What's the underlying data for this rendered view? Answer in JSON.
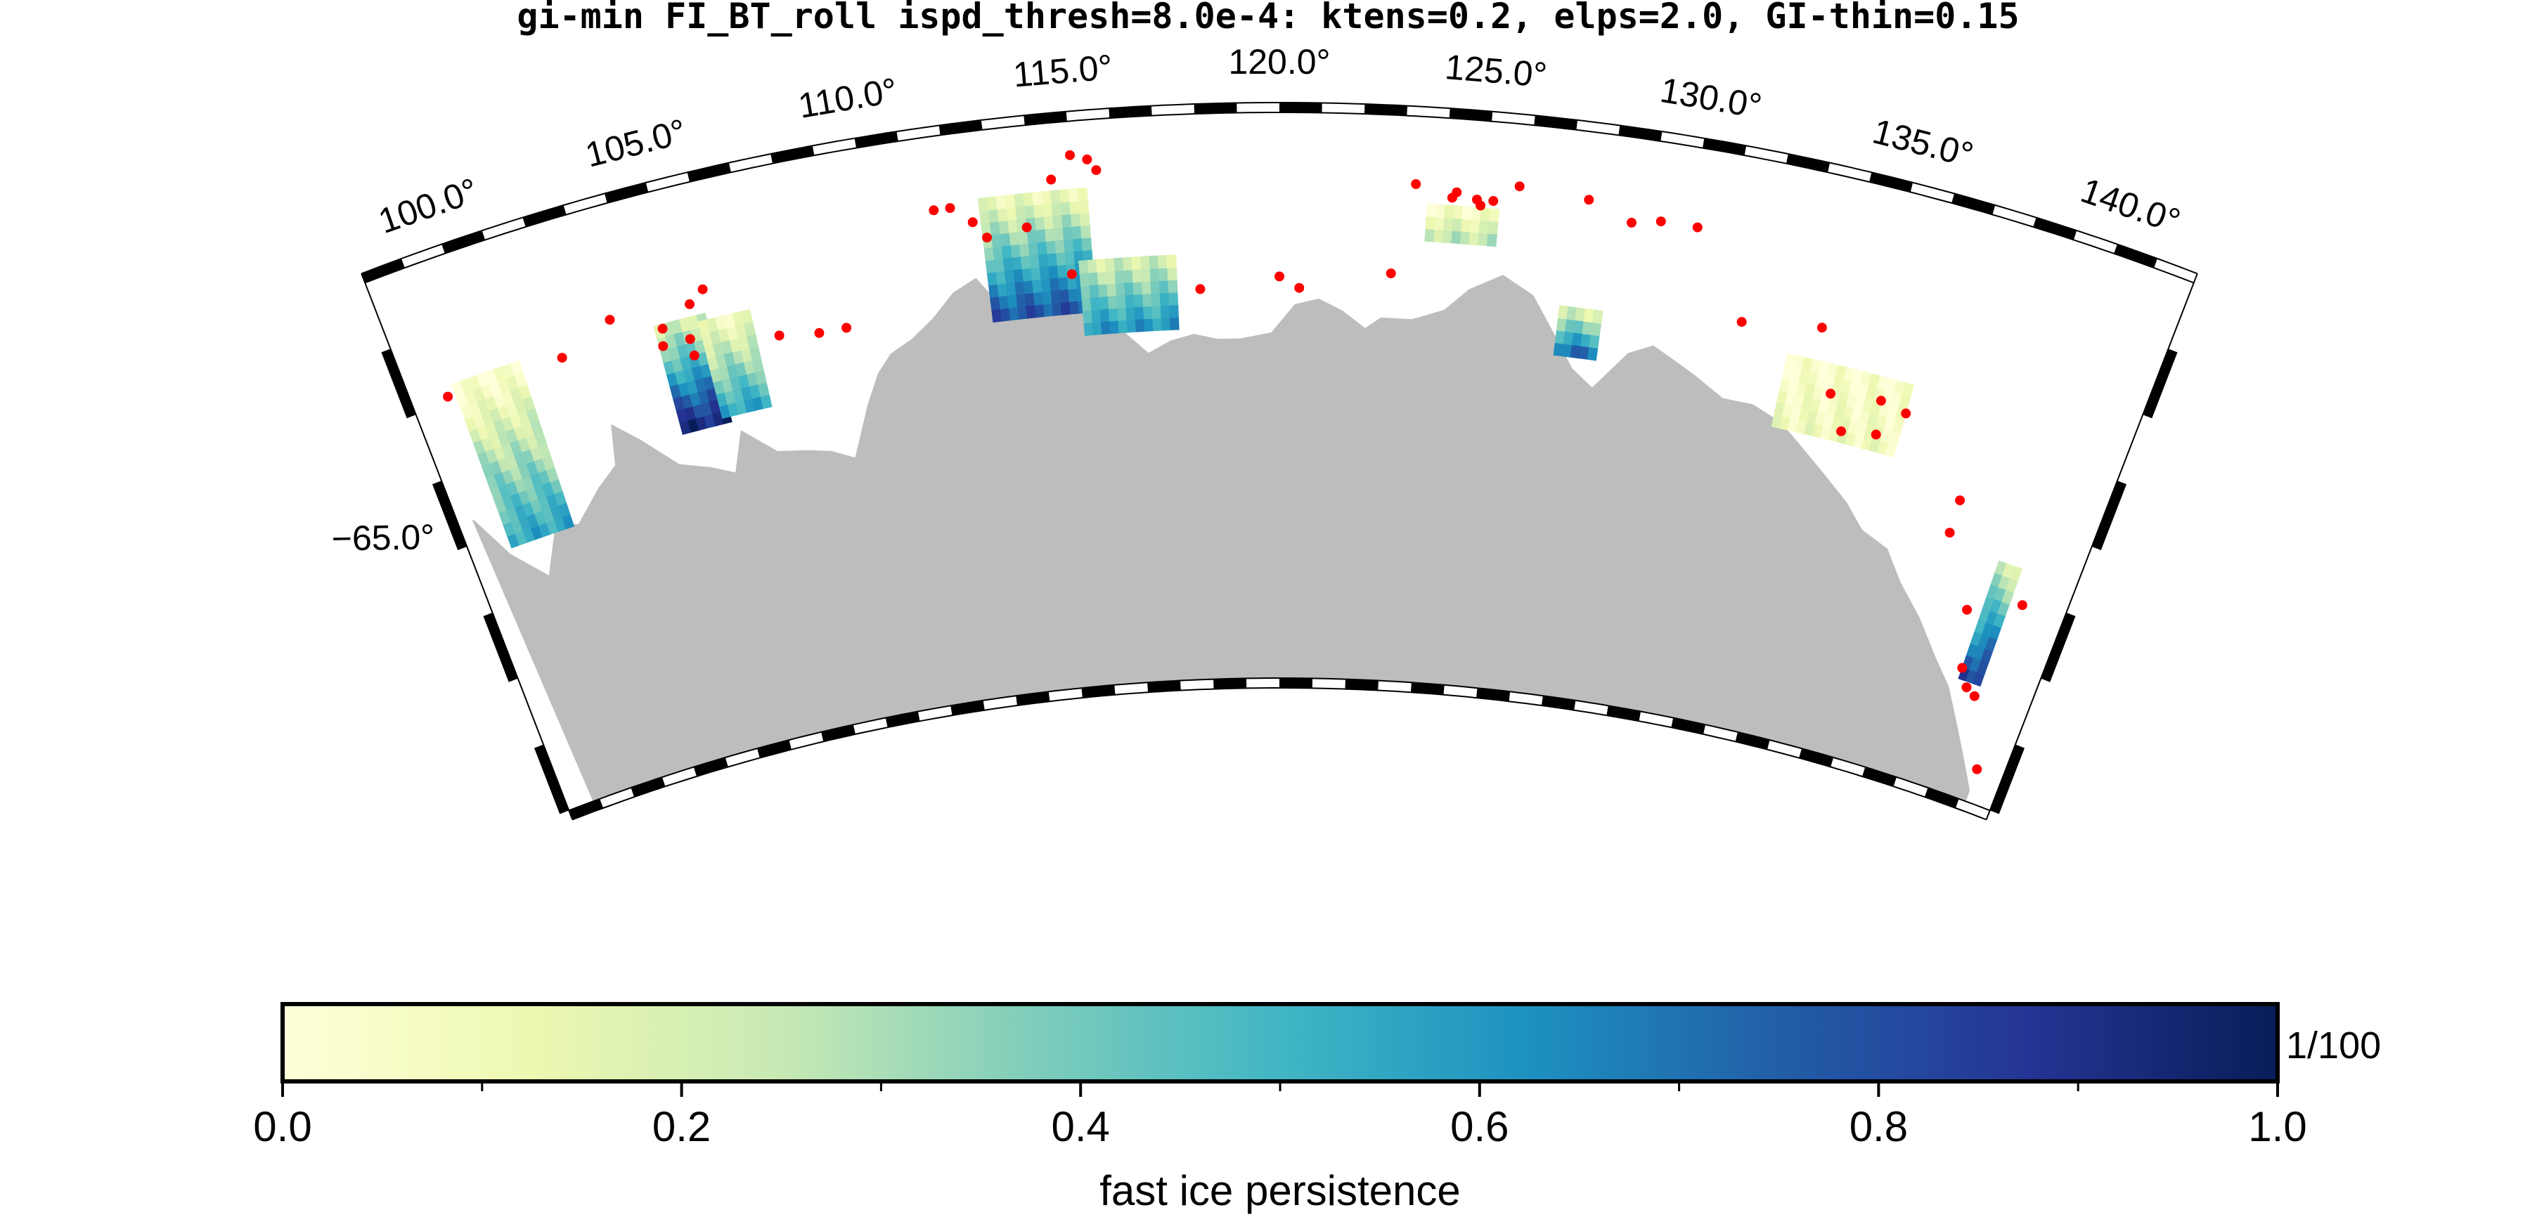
{
  "title": "gi-min FI_BT_roll ispd_thresh=8.0e-4: ktens=0.2, elps=2.0, GI-thin=0.15",
  "map": {
    "lon_range": [
      98.0,
      142.0
    ],
    "lat_range": [
      -70.0,
      -62.0
    ],
    "lon_ticks": [
      100,
      105,
      110,
      115,
      120,
      125,
      130,
      135,
      140
    ],
    "lon_tick_labels": [
      "100.0°",
      "105.0°",
      "110.0°",
      "115.0°",
      "120.0°",
      "125.0°",
      "130.0°",
      "135.0°",
      "140.0°"
    ],
    "lat_tick_labels": [
      "-65.0°"
    ],
    "land_color": "#bdbdbd",
    "point_color": "#ff0000",
    "frame": "fancy"
  },
  "legend": {
    "cmap": "YlGnBu",
    "range": [
      0.0,
      1.0
    ],
    "tick_labels": [
      "0.0",
      "0.2",
      "0.4",
      "0.6",
      "0.8",
      "1.0"
    ],
    "unit": "1/100",
    "label": "fast ice persistence",
    "stops": [
      "#ffffd9",
      "#edf8b1",
      "#c7e9b4",
      "#7fcdbb",
      "#41b6c4",
      "#1d91c0",
      "#225ea8",
      "#253494",
      "#081d58"
    ]
  }
}
